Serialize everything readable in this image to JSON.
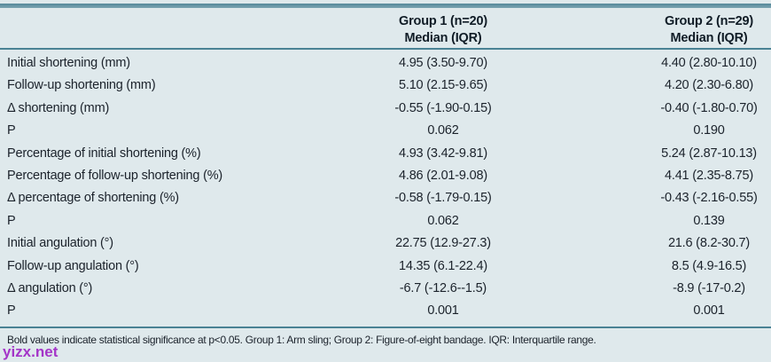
{
  "table": {
    "columns": [
      {
        "label_line1": "Group 1 (n=20)",
        "label_line2": "Median (IQR)"
      },
      {
        "label_line1": "Group 2 (n=29)",
        "label_line2": "Median (IQR)"
      }
    ],
    "rows": [
      {
        "label": "Initial shortening (mm)",
        "group1": "4.95 (3.50-9.70)",
        "group2": "4.40 (2.80-10.10)"
      },
      {
        "label": "Follow-up shortening (mm)",
        "group1": "5.10 (2.15-9.65)",
        "group2": "4.20 (2.30-6.80)"
      },
      {
        "label": "Δ shortening (mm)",
        "group1": "-0.55 (-1.90-0.15)",
        "group2": "-0.40 (-1.80-0.70)"
      },
      {
        "label": "P",
        "group1": "0.062",
        "group2": "0.190"
      },
      {
        "label": "Percentage of initial shortening (%)",
        "group1": "4.93 (3.42-9.81)",
        "group2": "5.24 (2.87-10.13)"
      },
      {
        "label": "Percentage of follow-up shortening (%)",
        "group1": "4.86 (2.01-9.08)",
        "group2": "4.41 (2.35-8.75)"
      },
      {
        "label": "Δ percentage of shortening (%)",
        "group1": "-0.58 (-1.79-0.15)",
        "group2": "-0.43 (-2.16-0.55)"
      },
      {
        "label": "P",
        "group1": "0.062",
        "group2": "0.139"
      },
      {
        "label": "Initial angulation (°)",
        "group1": "22.75 (12.9-27.3)",
        "group2": "21.6 (8.2-30.7)"
      },
      {
        "label": "Follow-up angulation (°)",
        "group1": "14.35 (6.1-22.4)",
        "group2": "8.5 (4.9-16.5)"
      },
      {
        "label": "Δ angulation (°)",
        "group1": "-6.7 (-12.6--1.5)",
        "group2": "-8.9 (-17-0.2)"
      },
      {
        "label": "P",
        "group1": "0.001",
        "group2": "0.001"
      }
    ],
    "footnote": "Bold values indicate statistical significance at p<0.05. Group 1: Arm sling; Group 2: Figure-of-eight bandage. IQR: Interquartile range."
  },
  "watermark": "yizx.net",
  "colors": {
    "background": "#dfe9ec",
    "rule": "#4a8294",
    "top_bar": "#6697a6",
    "text": "#1b222b",
    "watermark": "#a435c8"
  }
}
